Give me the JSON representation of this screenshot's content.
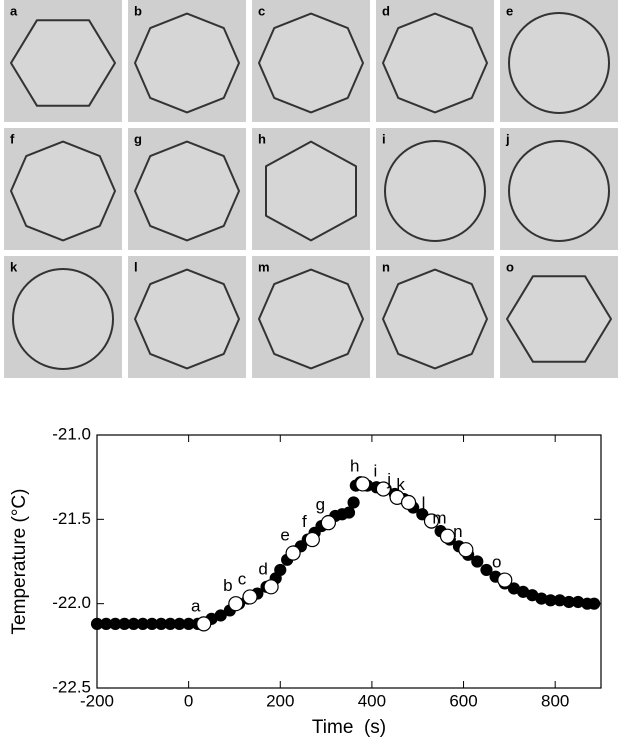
{
  "panel_labels": [
    "a",
    "b",
    "c",
    "d",
    "e",
    "f",
    "g",
    "h",
    "i",
    "j",
    "k",
    "l",
    "m",
    "n",
    "o"
  ],
  "chart_data": {
    "type": "scatter",
    "x_label": "Time  (s)",
    "y_label": "Temperature (°C)",
    "xlim": [
      -200,
      900
    ],
    "xticks": [
      -200,
      0,
      200,
      400,
      600,
      800
    ],
    "ylim": [
      -22.5,
      -21.0
    ],
    "yticks": [
      -22.5,
      {
        "value": -22.0,
        "label": "-22.0"
      },
      -21.5,
      {
        "value": -21.0,
        "label": "-21.0"
      }
    ],
    "series": [
      {
        "marker": "filled",
        "color": "#000000",
        "x": [
          -200,
          -180,
          -160,
          -140,
          -120,
          -100,
          -80,
          -60,
          -40,
          -20,
          0,
          20,
          50,
          70,
          90,
          110,
          130,
          150,
          170,
          190,
          200,
          215,
          230,
          245,
          260,
          275,
          290,
          305,
          320,
          335,
          350,
          360,
          365,
          375,
          390,
          410,
          430,
          450,
          470,
          490,
          510,
          530,
          550,
          570,
          590,
          610,
          630,
          650,
          670,
          690,
          710,
          730,
          750,
          770,
          790,
          810,
          830,
          850,
          870,
          885
        ],
        "values": [
          -22.12,
          -22.12,
          -22.12,
          -22.12,
          -22.12,
          -22.12,
          -22.12,
          -22.12,
          -22.12,
          -22.12,
          -22.12,
          -22.12,
          -22.09,
          -22.07,
          -22.04,
          -22.0,
          -21.97,
          -21.94,
          -21.9,
          -21.85,
          -21.8,
          -21.74,
          -21.69,
          -21.66,
          -21.62,
          -21.58,
          -21.54,
          -21.51,
          -21.48,
          -21.47,
          -21.46,
          -21.4,
          -21.3,
          -21.28,
          -21.3,
          -21.31,
          -21.32,
          -21.35,
          -21.38,
          -21.43,
          -21.47,
          -21.52,
          -21.57,
          -21.62,
          -21.66,
          -21.71,
          -21.75,
          -21.8,
          -21.84,
          -21.88,
          -21.91,
          -21.93,
          -21.95,
          -21.97,
          -21.98,
          -21.98,
          -21.99,
          -21.99,
          -22.0,
          -22.0
        ]
      },
      {
        "marker": "open",
        "color": "#ffffff",
        "edge_color": "#000000",
        "x": [
          33,
          103,
          134,
          180,
          228,
          270,
          305,
          380,
          425,
          455,
          480,
          530,
          565,
          605,
          690
        ],
        "values": [
          -22.12,
          -22.0,
          -21.96,
          -21.9,
          -21.7,
          -21.62,
          -21.52,
          -21.29,
          -21.32,
          -21.37,
          -21.4,
          -21.51,
          -21.6,
          -21.68,
          -21.86
        ],
        "point_labels": [
          "a",
          "b",
          "c",
          "d",
          "e",
          "f",
          "g",
          "h",
          "i",
          "j",
          "k",
          "l",
          "m",
          "n",
          "o"
        ]
      }
    ]
  }
}
